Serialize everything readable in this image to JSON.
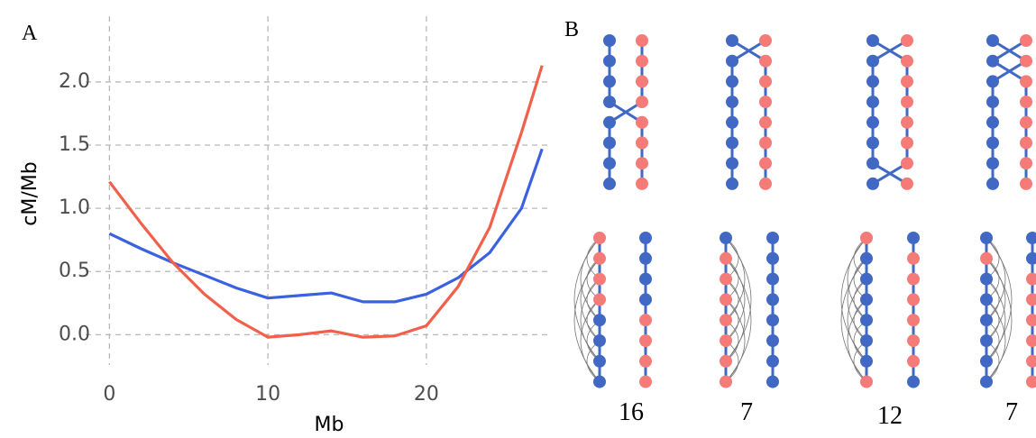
{
  "chart_data": {
    "type": "line",
    "panel_label": "A",
    "x_label": "Mb",
    "y_label": "cM/Mb",
    "x": [
      0,
      2,
      4,
      6,
      8,
      10,
      12,
      14,
      16,
      18,
      20,
      22,
      24,
      26,
      27.3
    ],
    "series": [
      {
        "color": "#3a62e0",
        "values": [
          0.8,
          0.68,
          0.57,
          0.47,
          0.37,
          0.29,
          0.31,
          0.33,
          0.26,
          0.26,
          0.32,
          0.45,
          0.65,
          1.0,
          1.47
        ]
      },
      {
        "color": "#f0604a",
        "values": [
          1.21,
          0.88,
          0.57,
          0.32,
          0.12,
          -0.02,
          0.0,
          0.03,
          -0.02,
          -0.01,
          0.07,
          0.38,
          0.85,
          1.6,
          2.13
        ]
      }
    ],
    "xlim": [
      -1.5,
      27.8
    ],
    "ylim": [
      -0.24,
      2.52
    ],
    "xticks": [
      0,
      10,
      20
    ],
    "yticks": [
      {
        "value": 0,
        "label": "0.0"
      },
      {
        "value": 0.5,
        "label": "0.5"
      },
      {
        "value": 1,
        "label": "1.0"
      },
      {
        "value": 1.5,
        "label": "1.5"
      },
      {
        "value": 2,
        "label": "2.0"
      }
    ],
    "grid": true
  },
  "panel_b": {
    "label": "B",
    "counts": [
      16,
      7,
      12,
      7
    ]
  }
}
